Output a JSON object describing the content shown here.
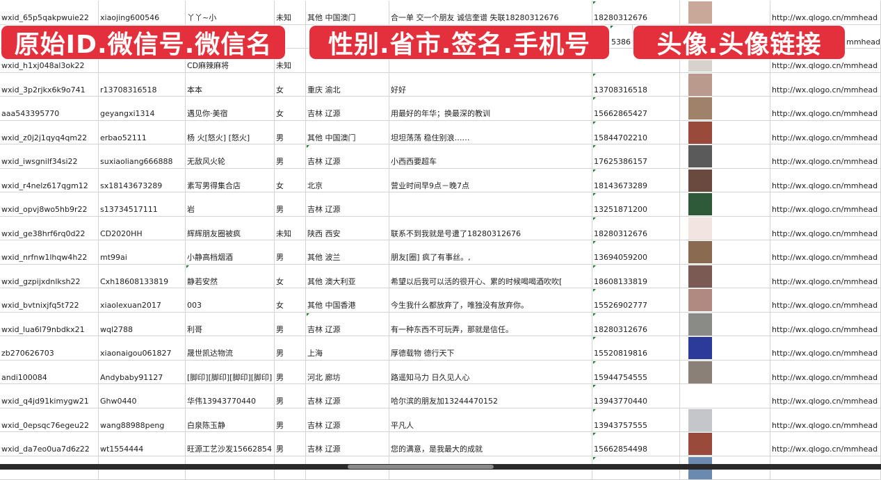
{
  "overlays": [
    "原始ID.微信号.微信名",
    "性别.省市.签名.手机号",
    "头像.头像链接"
  ],
  "colors": {
    "banner": "#e3303c",
    "grid": "#d4d4d4",
    "comment_marker": "#1e7a30"
  },
  "rows": [
    [
      "wxid_65p5qakpwuie22",
      "xiaojing600546",
      "丫丫~小",
      "未知",
      "其他 中国澳门",
      "合一单 交一个朋友 诚信奎谱 失联18280312676",
      "18280312676",
      "#c9a89a",
      "http://wx.qlogo.cn/mmhead"
    ],
    [
      "",
      "",
      "",
      "",
      "",
      "",
      "5386",
      "#6b7fa8",
      "http://wx.qlogo.cn/mmhead"
    ],
    [
      "wxid_h1xj048al3ok22",
      "",
      "CD麻辣麻将",
      "未知",
      "",
      "",
      "",
      "#d8d2cc",
      "http://wx.qlogo.cn/mmhead"
    ],
    [
      "wxid_3p2rjkx6k9o741",
      "r13708316518",
      "本本",
      "女",
      "重庆 渝北",
      "好好",
      "13708316518",
      "#b99a8c",
      "http://wx.qlogo.cn/mmhead"
    ],
    [
      "aaa543395770",
      "geyangxi1314",
      "遇见你·美宿",
      "女",
      "吉林 辽源",
      "用最好的年华；换最深的教训",
      "15662865427",
      "#a0826a",
      "http://wx.qlogo.cn/mmhead"
    ],
    [
      "wxid_z0j2j1qyq4qm22",
      "erbao52111",
      "杨 火[怒火] [怒火]",
      "男",
      "其他 中国澳门",
      "坦坦荡荡 稳住别浪……",
      "15844702210",
      "#9a4a3a",
      "http://wx.qlogo.cn/mmhead"
    ],
    [
      "wxid_iwsgnilf34si22",
      "suxiaoliang666888",
      "无敌风火轮",
      "男",
      "吉林 辽源",
      "小西西要超车",
      "17625386157",
      "#5a5a5a",
      "http://wx.qlogo.cn/mmhead"
    ],
    [
      "wxid_r4nelz617qgm12",
      "sx18143673289",
      "素写男得集合店",
      "女",
      "北京",
      "营业时间早9点－晚7点",
      "18143673289",
      "#6a4a3e",
      "http://wx.qlogo.cn/mmhead"
    ],
    [
      "wxid_opvj8wo5hb9r22",
      "s13734517111",
      "岩",
      "男",
      "吉林 辽源",
      "",
      "13251871200",
      "#2f5a3a",
      "http://wx.qlogo.cn/mmhead"
    ],
    [
      "wxid_ge38hrf6rq0d22",
      "CD2020HH",
      "辉辉朋友圈被疯",
      "未知",
      "陕西 西安",
      "联系不到我就是号遭了18280312676",
      "18280312676",
      "#f2e4e0",
      "http://wx.qlogo.cn/mmhead"
    ],
    [
      "wxid_nrfnw1lhqw4h22",
      "mt99ai",
      "小静高档烟酒",
      "男",
      "其他 波兰",
      "朋友[圈] 疯了有事丝。,",
      "13694059200",
      "#8a6a50",
      "http://wx.qlogo.cn/mmhead"
    ],
    [
      "wxid_gzpijxdnlksh22",
      "Cxh18608133819",
      "静若安然",
      "女",
      "其他 澳大利亚",
      "希望以后我可以活的很开心、累的时候喝喝酒吹吹[",
      "18608133819",
      "#7a5a52",
      "http://wx.qlogo.cn/mmhead"
    ],
    [
      "wxid_bvtnixjfq5t722",
      "xiaolexuan2017",
      "003",
      "女",
      "其他 中国香港",
      "今生我什么都放弃了，唯独没有放弃你。",
      "15526902777",
      "#b08a80",
      "http://wx.qlogo.cn/mmhead"
    ],
    [
      "wxid_lua6l79nbdkx21",
      "wql2788",
      "利哥",
      "男",
      "吉林 辽源",
      "有一种东西不可玩弄，那就是信任。",
      "18280312676",
      "#8a8a86",
      "http://wx.qlogo.cn/mmhead"
    ],
    [
      "zb270626703",
      "xiaonaigou061827",
      "晟世凯达物流",
      "男",
      "上海",
      "厚德载物 德行天下",
      "15520819816",
      "#2c3a9a",
      "http://wx.qlogo.cn/mmhead"
    ],
    [
      "andi100084",
      "Andybaby91127",
      "[脚印][脚印][脚印][脚印]",
      "男",
      "河北 廊坊",
      "路遥知马力 日久见人心",
      "15944754555",
      "#8a8078",
      "http://wx.qlogo.cn/mmhead"
    ],
    [
      "wxid_q4jd91kimygw21",
      "Ghw0440",
      "华伟13943770440",
      "男",
      "吉林 辽源",
      "哈尔滨的朋友加13244470152",
      "13943770440",
      "#ffffff",
      "http://wx.qlogo.cn/mmhead"
    ],
    [
      "wxid_0epsqc76egeu22",
      "wang88988peng",
      "白泉陈玉静",
      "男",
      "吉林 辽源",
      "平凡人",
      "13943757555",
      "#c4c6ca",
      "http://wx.qlogo.cn/mmhead"
    ],
    [
      "wxid_da7eo0ua7d6z22",
      "wt1554444",
      "旺源工艺沙发15662854",
      "男",
      "吉林 辽源",
      "您的满意，是我最大的成就",
      "15662854498",
      "#9a4a3a",
      "http://wx.qlogo.cn/mmhead"
    ],
    [
      "",
      "",
      "",
      "",
      "",
      "",
      "",
      "#6a8ab0",
      ""
    ]
  ]
}
